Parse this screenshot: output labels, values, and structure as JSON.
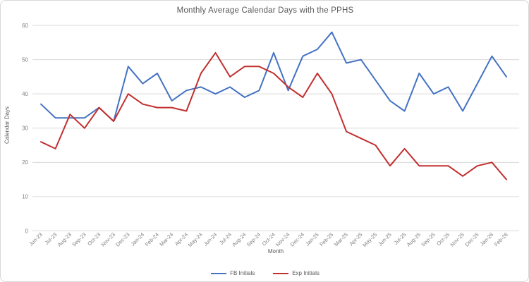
{
  "chart_data": {
    "type": "line",
    "title": "Monthly Average Calendar Days with the PPHS",
    "xlabel": "Month",
    "ylabel": "Calendar Days",
    "ylim": [
      0,
      60
    ],
    "y_ticks": [
      0,
      10,
      20,
      30,
      40,
      50,
      60
    ],
    "grid": true,
    "legend_position": "bottom",
    "colors": {
      "gridline": "#d9d9d9",
      "tick_label": "#808080",
      "title_text": "#595959",
      "series_blue": "#4472C4",
      "series_red": "#C22F2F"
    },
    "categories": [
      "Jun-23",
      "Jul-23",
      "Aug-23",
      "Sep-23",
      "Oct-23",
      "Nov-23",
      "Dec-23",
      "Jan-24",
      "Feb-24",
      "Mar-24",
      "Apr-24",
      "May-24",
      "Jun-24",
      "Jul-24",
      "Aug-24",
      "Sep-24",
      "Oct-24",
      "Nov-24",
      "Dec-24",
      "Jan-25",
      "Feb-25",
      "Mar-25",
      "Apr-25",
      "May-25",
      "Jun-25",
      "Jul-25",
      "Aug-25",
      "Sep-25",
      "Oct-25",
      "Nov-25",
      "Dec-25",
      "Jan-26",
      "Feb-26"
    ],
    "series": [
      {
        "name": "FB Initials",
        "color": "#4472C4",
        "values": [
          37,
          33,
          33,
          33,
          36,
          32,
          48,
          43,
          46,
          38,
          41,
          42,
          40,
          42,
          39,
          41,
          52,
          41,
          51,
          53,
          58,
          49,
          50,
          44,
          38,
          35,
          46,
          40,
          42,
          35,
          43,
          51,
          45
        ]
      },
      {
        "name": "Exp Initials",
        "color": "#C22F2F",
        "values": [
          26,
          24,
          34,
          30,
          36,
          32,
          40,
          37,
          36,
          36,
          35,
          46,
          52,
          45,
          48,
          48,
          46,
          42,
          39,
          46,
          40,
          29,
          27,
          25,
          19,
          24,
          19,
          19,
          19,
          16,
          19,
          20,
          15
        ]
      }
    ]
  }
}
